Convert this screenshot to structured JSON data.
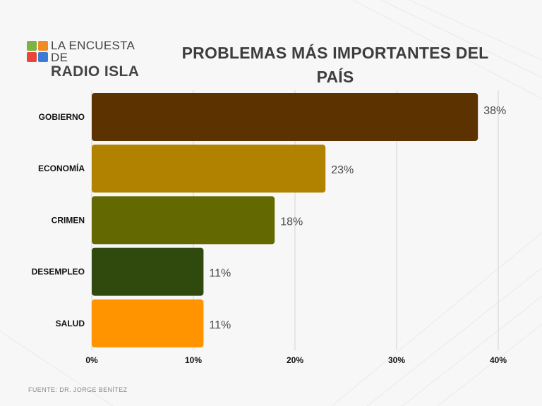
{
  "logo": {
    "line1": "LA ENCUESTA DE",
    "line2": "RADIO ISLA",
    "colors": [
      "#7cb342",
      "#f08a24",
      "#e8453c",
      "#3a7bd5"
    ]
  },
  "title": "PROBLEMAS MÁS IMPORTANTES DEL PAÍS",
  "source": "FUENTE: DR. JORGE BENÍTEZ",
  "chart_data": {
    "type": "bar",
    "orientation": "horizontal",
    "title": "PROBLEMAS MÁS IMPORTANTES DEL PAÍS",
    "categories": [
      "GOBIERNO",
      "ECONOMÍA",
      "CRIMEN",
      "DESEMPLEO",
      "SALUD"
    ],
    "values": [
      38,
      23,
      18,
      11,
      11
    ],
    "data_labels": [
      "38%",
      "23%",
      "18%",
      "11%",
      "11%"
    ],
    "colors": [
      "#5c3200",
      "#b08200",
      "#636800",
      "#2f4a0c",
      "#ff9400"
    ],
    "xlim": [
      0,
      40
    ],
    "xticks": [
      0,
      10,
      20,
      30,
      40
    ],
    "xtick_labels": [
      "0%",
      "10%",
      "20%",
      "30%",
      "40%"
    ],
    "grid": true
  }
}
